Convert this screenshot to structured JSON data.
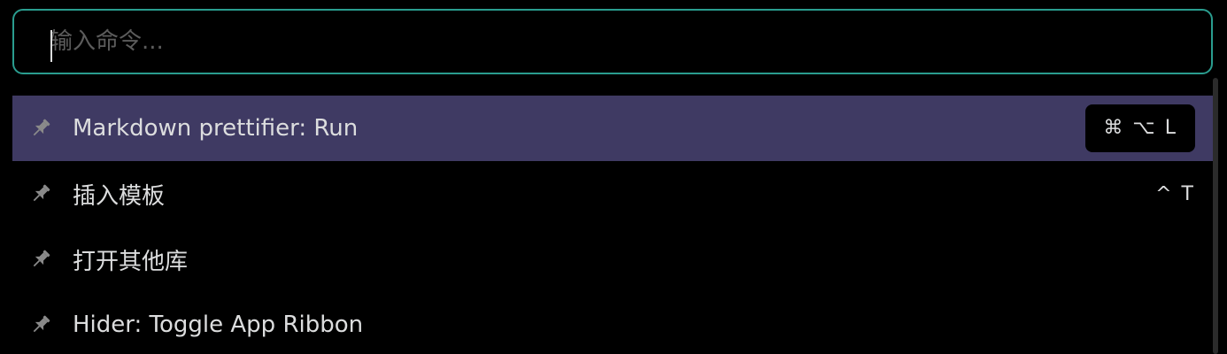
{
  "search": {
    "placeholder": "输入命令...",
    "value": ""
  },
  "commands": [
    {
      "label": "Markdown prettifier: Run",
      "hotkey": "⌘ ⌥ L",
      "selected": true,
      "icon": "pin-icon"
    },
    {
      "label": "插入模板",
      "hotkey": "^ T",
      "selected": false,
      "icon": "pin-icon"
    },
    {
      "label": "打开其他库",
      "hotkey": "",
      "selected": false,
      "icon": "pin-icon"
    },
    {
      "label": "Hider: Toggle App Ribbon",
      "hotkey": "",
      "selected": false,
      "icon": "pin-icon"
    }
  ],
  "colors": {
    "accent_border": "#2a9d8f",
    "selected_row": "#3f3a63",
    "background": "#000000"
  }
}
